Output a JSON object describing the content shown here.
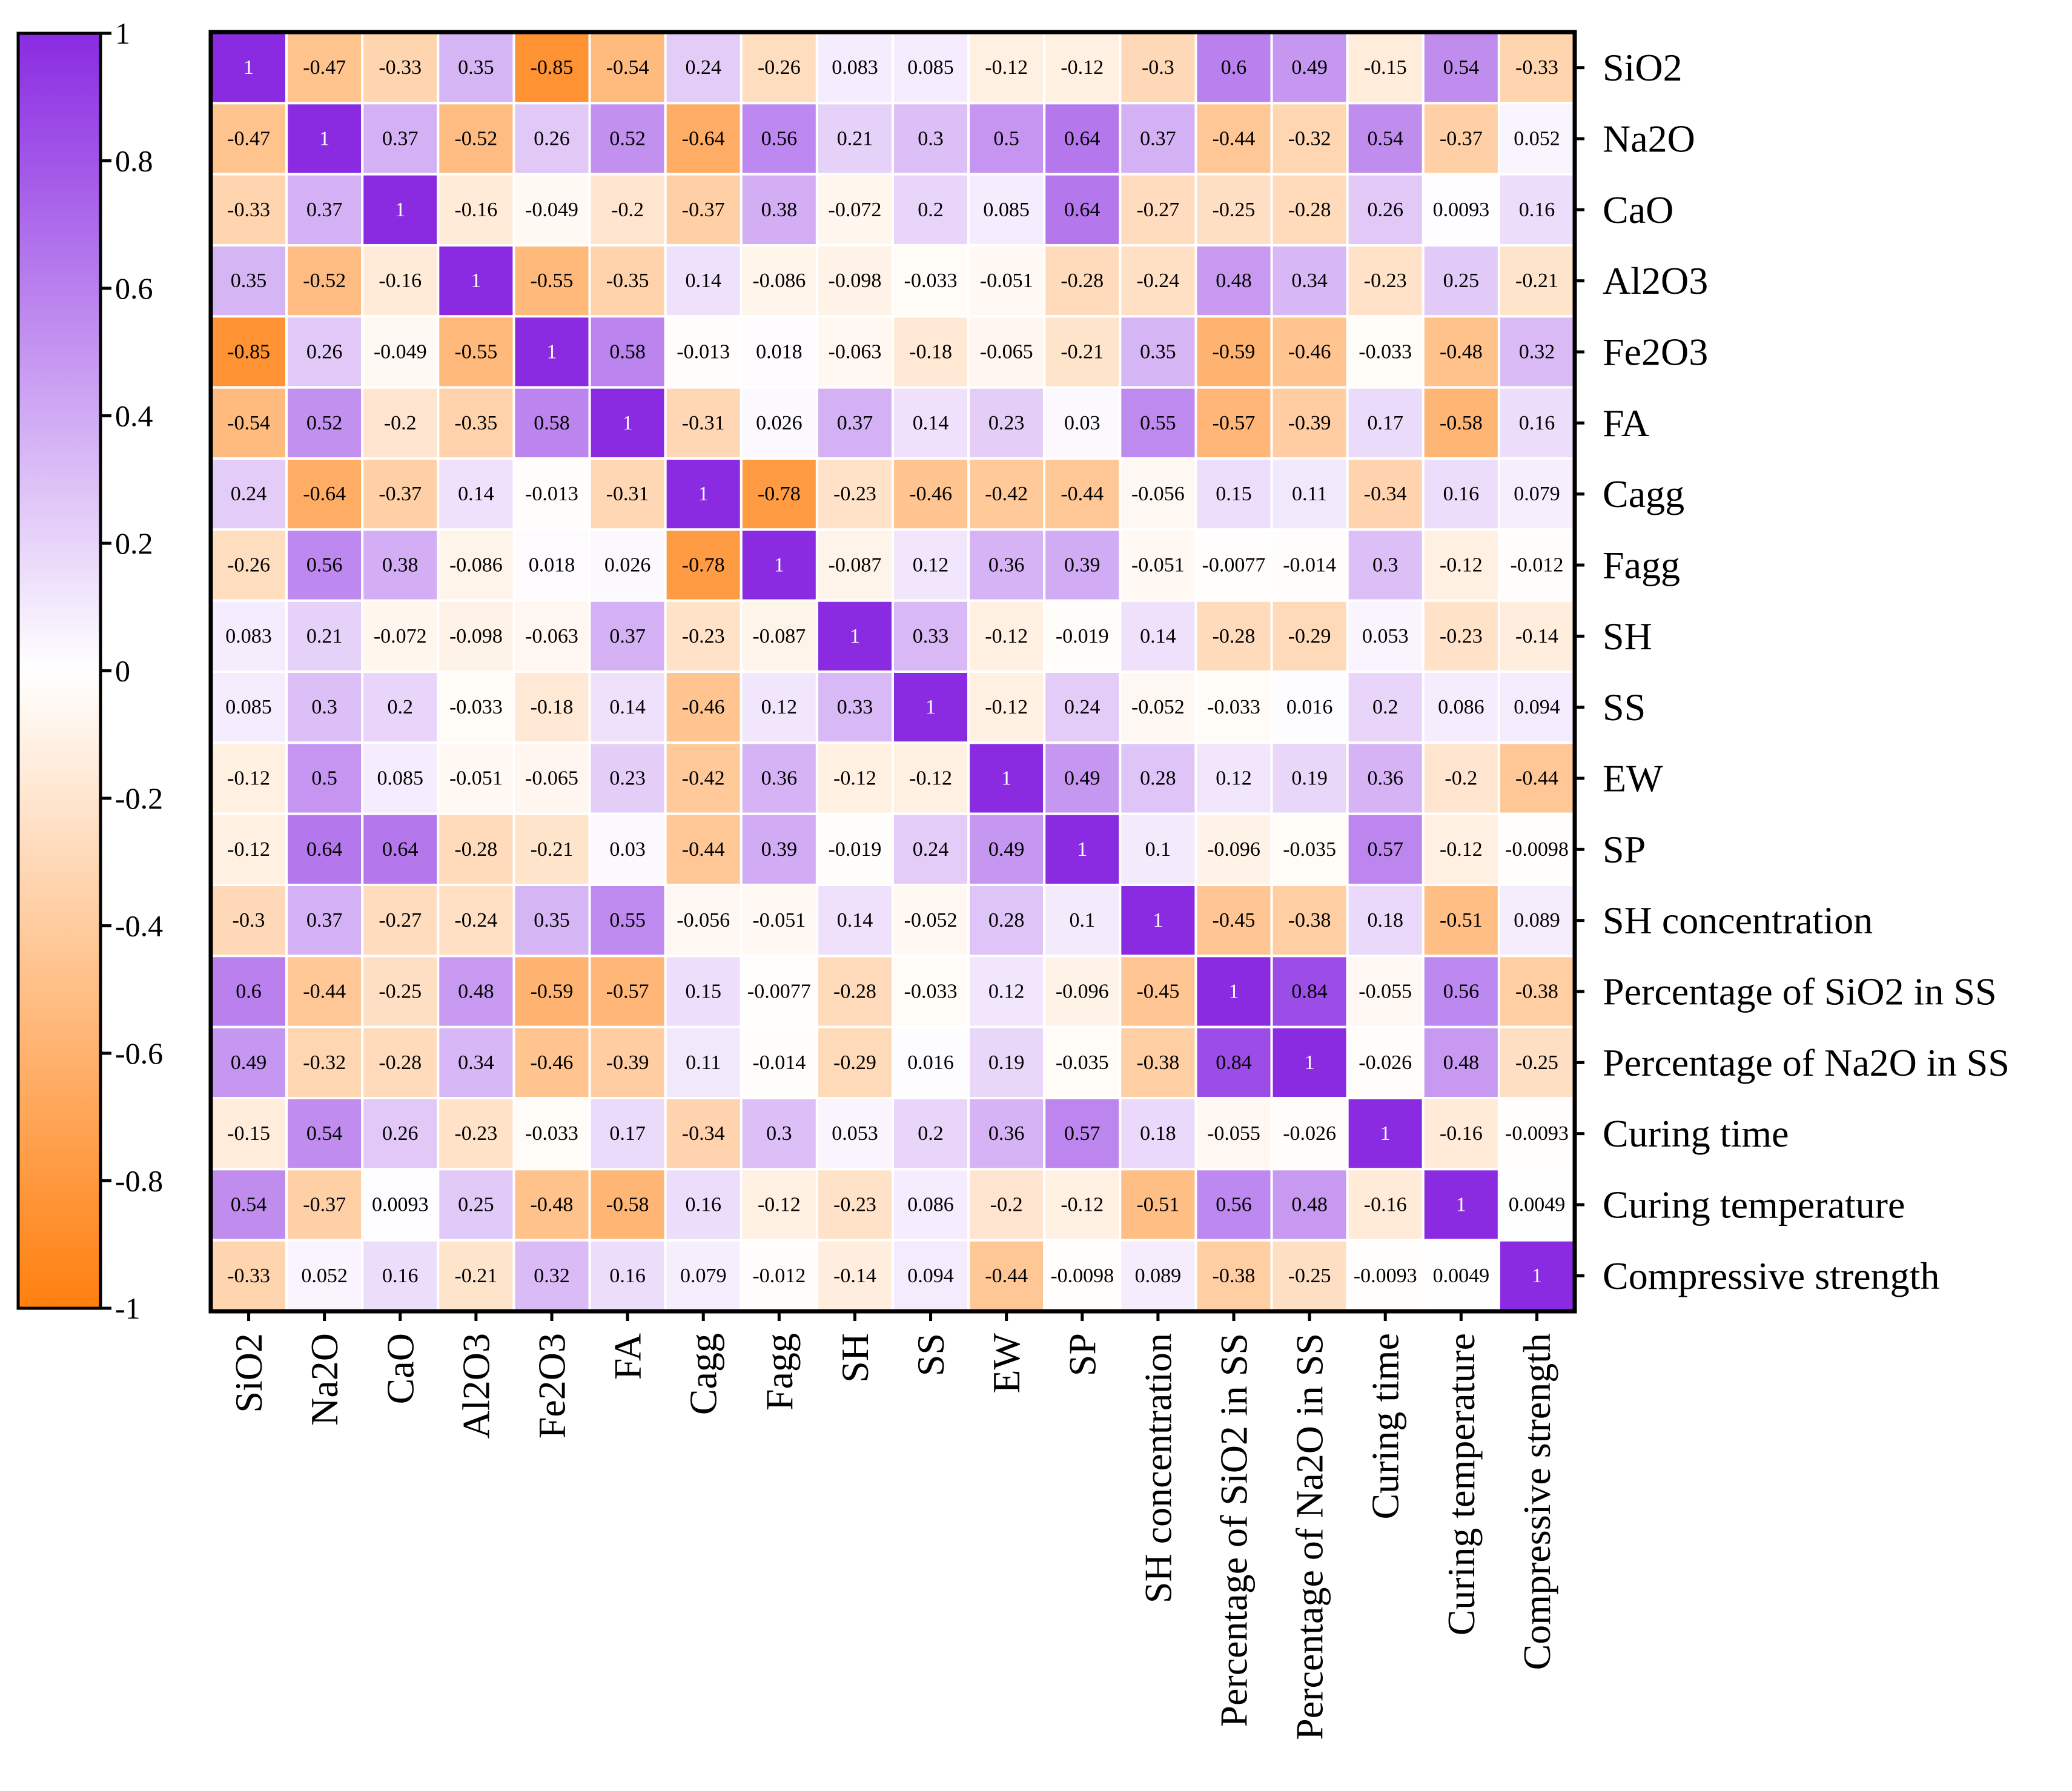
{
  "chart_data": {
    "type": "heatmap",
    "title": "",
    "variables": [
      "SiO2",
      "Na2O",
      "CaO",
      "Al2O3",
      "Fe2O3",
      "FA",
      "Cagg",
      "Fagg",
      "SH",
      "SS",
      "EW",
      "SP",
      "SH concentration",
      "Percentage of SiO2 in SS",
      "Percentage of Na2O in SS",
      "Curing time",
      "Curing temperature",
      "Compressive strength"
    ],
    "matrix_labels": [
      [
        "1",
        "-0.47",
        "-0.33",
        "0.35",
        "-0.85",
        "-0.54",
        "0.24",
        "-0.26",
        "0.083",
        "0.085",
        "-0.12",
        "-0.12",
        "-0.3",
        "0.6",
        "0.49",
        "-0.15",
        "0.54",
        "-0.33"
      ],
      [
        "-0.47",
        "1",
        "0.37",
        "-0.52",
        "0.26",
        "0.52",
        "-0.64",
        "0.56",
        "0.21",
        "0.3",
        "0.5",
        "0.64",
        "0.37",
        "-0.44",
        "-0.32",
        "0.54",
        "-0.37",
        "0.052"
      ],
      [
        "-0.33",
        "0.37",
        "1",
        "-0.16",
        "-0.049",
        "-0.2",
        "-0.37",
        "0.38",
        "-0.072",
        "0.2",
        "0.085",
        "0.64",
        "-0.27",
        "-0.25",
        "-0.28",
        "0.26",
        "0.0093",
        "0.16"
      ],
      [
        "0.35",
        "-0.52",
        "-0.16",
        "1",
        "-0.55",
        "-0.35",
        "0.14",
        "-0.086",
        "-0.098",
        "-0.033",
        "-0.051",
        "-0.28",
        "-0.24",
        "0.48",
        "0.34",
        "-0.23",
        "0.25",
        "-0.21"
      ],
      [
        "-0.85",
        "0.26",
        "-0.049",
        "-0.55",
        "1",
        "0.58",
        "-0.013",
        "0.018",
        "-0.063",
        "-0.18",
        "-0.065",
        "-0.21",
        "0.35",
        "-0.59",
        "-0.46",
        "-0.033",
        "-0.48",
        "0.32"
      ],
      [
        "-0.54",
        "0.52",
        "-0.2",
        "-0.35",
        "0.58",
        "1",
        "-0.31",
        "0.026",
        "0.37",
        "0.14",
        "0.23",
        "0.03",
        "0.55",
        "-0.57",
        "-0.39",
        "0.17",
        "-0.58",
        "0.16"
      ],
      [
        "0.24",
        "-0.64",
        "-0.37",
        "0.14",
        "-0.013",
        "-0.31",
        "1",
        "-0.78",
        "-0.23",
        "-0.46",
        "-0.42",
        "-0.44",
        "-0.056",
        "0.15",
        "0.11",
        "-0.34",
        "0.16",
        "0.079"
      ],
      [
        "-0.26",
        "0.56",
        "0.38",
        "-0.086",
        "0.018",
        "0.026",
        "-0.78",
        "1",
        "-0.087",
        "0.12",
        "0.36",
        "0.39",
        "-0.051",
        "-0.0077",
        "-0.014",
        "0.3",
        "-0.12",
        "-0.012"
      ],
      [
        "0.083",
        "0.21",
        "-0.072",
        "-0.098",
        "-0.063",
        "0.37",
        "-0.23",
        "-0.087",
        "1",
        "0.33",
        "-0.12",
        "-0.019",
        "0.14",
        "-0.28",
        "-0.29",
        "0.053",
        "-0.23",
        "-0.14"
      ],
      [
        "0.085",
        "0.3",
        "0.2",
        "-0.033",
        "-0.18",
        "0.14",
        "-0.46",
        "0.12",
        "0.33",
        "1",
        "-0.12",
        "0.24",
        "-0.052",
        "-0.033",
        "0.016",
        "0.2",
        "0.086",
        "0.094"
      ],
      [
        "-0.12",
        "0.5",
        "0.085",
        "-0.051",
        "-0.065",
        "0.23",
        "-0.42",
        "0.36",
        "-0.12",
        "-0.12",
        "1",
        "0.49",
        "0.28",
        "0.12",
        "0.19",
        "0.36",
        "-0.2",
        "-0.44"
      ],
      [
        "-0.12",
        "0.64",
        "0.64",
        "-0.28",
        "-0.21",
        "0.03",
        "-0.44",
        "0.39",
        "-0.019",
        "0.24",
        "0.49",
        "1",
        "0.1",
        "-0.096",
        "-0.035",
        "0.57",
        "-0.12",
        "-0.0098"
      ],
      [
        "-0.3",
        "0.37",
        "-0.27",
        "-0.24",
        "0.35",
        "0.55",
        "-0.056",
        "-0.051",
        "0.14",
        "-0.052",
        "0.28",
        "0.1",
        "1",
        "-0.45",
        "-0.38",
        "0.18",
        "-0.51",
        "0.089"
      ],
      [
        "0.6",
        "-0.44",
        "-0.25",
        "0.48",
        "-0.59",
        "-0.57",
        "0.15",
        "-0.0077",
        "-0.28",
        "-0.033",
        "0.12",
        "-0.096",
        "-0.45",
        "1",
        "0.84",
        "-0.055",
        "0.56",
        "-0.38"
      ],
      [
        "0.49",
        "-0.32",
        "-0.28",
        "0.34",
        "-0.46",
        "-0.39",
        "0.11",
        "-0.014",
        "-0.29",
        "0.016",
        "0.19",
        "-0.035",
        "-0.38",
        "0.84",
        "1",
        "-0.026",
        "0.48",
        "-0.25"
      ],
      [
        "-0.15",
        "0.54",
        "0.26",
        "-0.23",
        "-0.033",
        "0.17",
        "-0.34",
        "0.3",
        "0.053",
        "0.2",
        "0.36",
        "0.57",
        "0.18",
        "-0.055",
        "-0.026",
        "1",
        "-0.16",
        "-0.0093"
      ],
      [
        "0.54",
        "-0.37",
        "0.0093",
        "0.25",
        "-0.48",
        "-0.58",
        "0.16",
        "-0.12",
        "-0.23",
        "0.086",
        "-0.2",
        "-0.12",
        "-0.51",
        "0.56",
        "0.48",
        "-0.16",
        "1",
        "0.0049"
      ],
      [
        "-0.33",
        "0.052",
        "0.16",
        "-0.21",
        "0.32",
        "0.16",
        "0.079",
        "-0.012",
        "-0.14",
        "0.094",
        "-0.44",
        "-0.0098",
        "0.089",
        "-0.38",
        "-0.25",
        "-0.0093",
        "0.0049",
        "1"
      ]
    ],
    "colorbar": {
      "range": [
        -1,
        1
      ],
      "tick_labels": [
        "1",
        "0.8",
        "0.6",
        "0.4",
        "0.2",
        "0",
        "-0.2",
        "-0.4",
        "-0.6",
        "-0.8",
        "-1"
      ],
      "positive_color": "#8a2be2",
      "zero_color": "#ffffff",
      "negative_color": "#ff7f0e"
    },
    "row_label_side": "right",
    "column_label_side": "bottom",
    "column_label_rotation": "vertical"
  }
}
